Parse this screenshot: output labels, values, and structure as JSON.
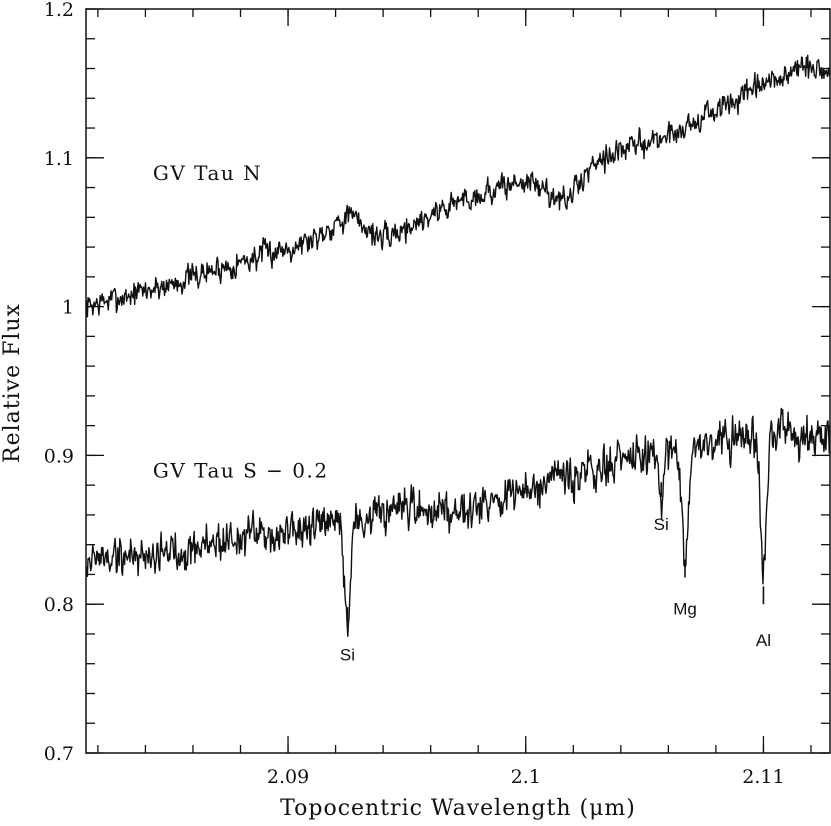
{
  "chart_data": {
    "type": "line",
    "title": "",
    "xlabel": "Topocentric Wavelength (μm)",
    "ylabel": "Relative Flux",
    "xlim": [
      2.0815,
      2.1128
    ],
    "ylim": [
      0.7,
      1.2
    ],
    "x_ticks": [
      {
        "value": 2.09,
        "label": "2.09"
      },
      {
        "value": 2.1,
        "label": "2.1"
      },
      {
        "value": 2.11,
        "label": "2.11"
      }
    ],
    "y_ticks": [
      {
        "value": 0.7,
        "label": "0.7"
      },
      {
        "value": 0.8,
        "label": "0.8"
      },
      {
        "value": 0.9,
        "label": "0.9"
      },
      {
        "value": 1.0,
        "label": "1"
      },
      {
        "value": 1.1,
        "label": "1.1"
      },
      {
        "value": 1.2,
        "label": "1.2"
      }
    ],
    "x_minor_step": 0.002,
    "y_minor_step": 0.02,
    "series": [
      {
        "name": "GV Tau N",
        "label_at": {
          "x": 2.0828,
          "y": 1.085
        },
        "x": [
          2.0815,
          2.085,
          2.088,
          2.091,
          2.0925,
          2.094,
          2.097,
          2.1,
          2.1017,
          2.103,
          2.106,
          2.109,
          2.1115,
          2.1128
        ],
        "y": [
          1.0,
          1.015,
          1.03,
          1.045,
          1.062,
          1.045,
          1.07,
          1.085,
          1.07,
          1.1,
          1.115,
          1.14,
          1.16,
          1.158
        ],
        "noise": 0.009,
        "seed": 7
      },
      {
        "name": "GV Tau S − 0.2",
        "label_at": {
          "x": 2.0828,
          "y": 0.885
        },
        "x": [
          2.0815,
          2.085,
          2.088,
          2.091,
          2.094,
          2.097,
          2.1,
          2.103,
          2.105,
          2.106,
          2.108,
          2.11,
          2.1128
        ],
        "y": [
          0.83,
          0.835,
          0.845,
          0.85,
          0.86,
          0.865,
          0.875,
          0.89,
          0.9,
          0.905,
          0.91,
          0.915,
          0.915
        ],
        "noise": 0.014,
        "seed": 19,
        "absorption": [
          {
            "center": 2.0925,
            "depth": 0.07,
            "sigma": 0.00012
          },
          {
            "center": 2.1057,
            "depth": 0.035,
            "sigma": 0.0001
          },
          {
            "center": 2.1067,
            "depth": 0.075,
            "sigma": 0.00014
          },
          {
            "center": 2.11,
            "depth": 0.095,
            "sigma": 0.00013
          }
        ]
      }
    ],
    "line_identifications": [
      {
        "label": "Si",
        "x": 2.0925,
        "mark_y": [
          0.798,
          0.792
        ],
        "text_y": 0.762
      },
      {
        "label": "Si",
        "x": 2.1057,
        "mark_y": [
          0.882,
          0.876
        ],
        "text_y": 0.85
      },
      {
        "label": "Mg",
        "x": 2.1067,
        "mark_y": [
          0.83,
          0.822
        ],
        "text_y": 0.793
      },
      {
        "label": "Al",
        "x": 2.11,
        "mark_y": [
          0.812,
          0.804
        ],
        "text_y": 0.772
      }
    ]
  }
}
